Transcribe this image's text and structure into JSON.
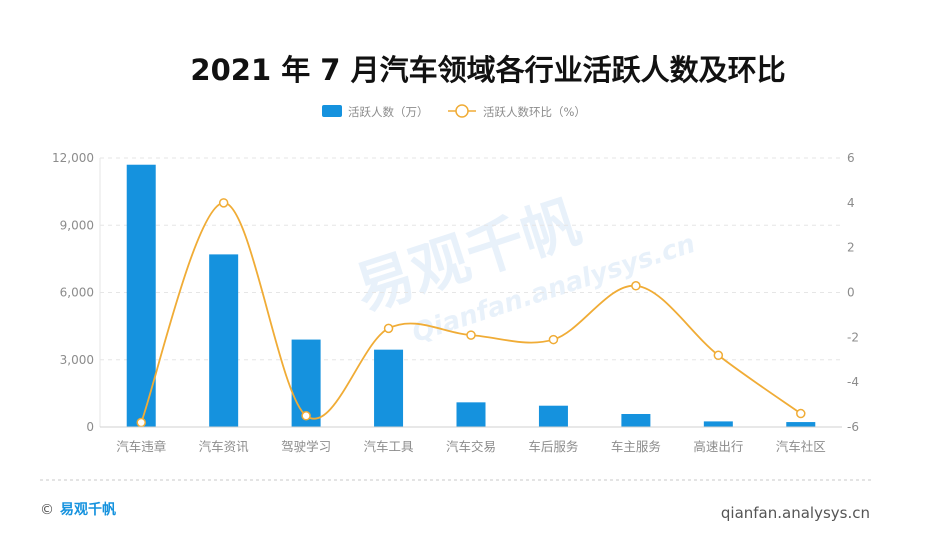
{
  "colors": {
    "bar": "#1592de",
    "line": "#f0ac36",
    "axis_text": "#8c8c8c",
    "grid": "#e6e6e6",
    "title": "#111111",
    "brand": "#1592de",
    "footer": "#555555"
  },
  "chart_data": {
    "type": "bar",
    "title": "2021 年 7 月汽车领域各行业活跃人数及环比",
    "categories": [
      "汽车违章",
      "汽车资讯",
      "驾驶学习",
      "汽车工具",
      "汽车交易",
      "车后服务",
      "车主服务",
      "高速出行",
      "汽车社区"
    ],
    "series": [
      {
        "name": "活跃人数（万）",
        "type": "bar",
        "axis": "left",
        "values": [
          11700,
          7700,
          3900,
          3450,
          1100,
          950,
          580,
          250,
          220
        ]
      },
      {
        "name": "活跃人数环比（%）",
        "type": "line",
        "smooth": true,
        "axis": "right",
        "values": [
          -5.8,
          4.0,
          -5.5,
          -1.6,
          -1.9,
          -2.1,
          0.3,
          -2.8,
          -5.4
        ]
      }
    ],
    "y_left": {
      "lim": [
        0,
        12000
      ],
      "ticks": [
        0,
        3000,
        6000,
        9000,
        12000
      ],
      "tick_labels": [
        "0",
        "3,000",
        "6,000",
        "9,000",
        "12,000"
      ]
    },
    "y_right": {
      "lim": [
        -6,
        6
      ],
      "ticks": [
        -6,
        -4,
        -2,
        0,
        2,
        4,
        6
      ],
      "tick_labels": [
        "-6",
        "-4",
        "-2",
        "0",
        "2",
        "4",
        "6"
      ]
    },
    "grid": true,
    "legend_position": "top-center"
  },
  "watermark": {
    "text_cn": "易观千帆",
    "text_en": "Qianfan.analysys.cn"
  },
  "footer": {
    "copyright_symbol": "©",
    "brand": "易观千帆",
    "url": "qianfan.analysys.cn"
  }
}
